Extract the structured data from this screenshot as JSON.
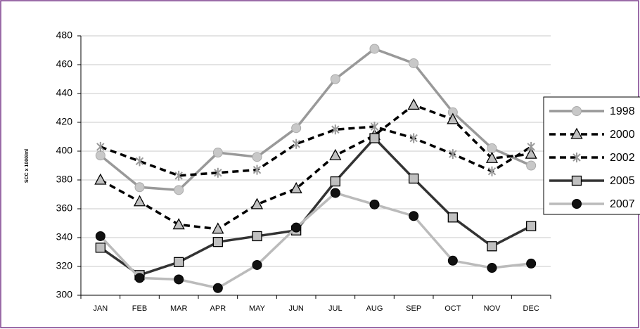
{
  "chart_data": {
    "type": "line",
    "y_label": "SCC x 1000/ml",
    "categories": [
      "JAN",
      "FEB",
      "MAR",
      "APR",
      "MAY",
      "JUN",
      "JUL",
      "AUG",
      "SEP",
      "OCT",
      "NOV",
      "DEC"
    ],
    "ylim": [
      300,
      480
    ],
    "yticks": [
      300,
      320,
      340,
      360,
      380,
      400,
      420,
      440,
      460,
      480
    ],
    "grid": true,
    "series": [
      {
        "name": "1998",
        "color": "#999999",
        "dash": "solid",
        "marker": "circle",
        "marker_fill": "#c8c8c8",
        "values": [
          397,
          375,
          373,
          399,
          396,
          416,
          450,
          471,
          461,
          427,
          402,
          390
        ]
      },
      {
        "name": "2000",
        "color": "#000000",
        "dash": "dashed",
        "marker": "triangle",
        "marker_fill": "#c0c0c0",
        "values": [
          380,
          365,
          349,
          346,
          363,
          374,
          397,
          411,
          432,
          422,
          395,
          398
        ]
      },
      {
        "name": "2002",
        "color": "#000000",
        "dash": "dashed",
        "marker": "star",
        "marker_fill": "#999999",
        "values": [
          403,
          393,
          383,
          385,
          387,
          405,
          415,
          417,
          409,
          398,
          386,
          403
        ]
      },
      {
        "name": "2005",
        "color": "#333333",
        "dash": "solid",
        "marker": "square",
        "marker_fill": "#c0c0c0",
        "values": [
          333,
          314,
          323,
          337,
          341,
          345,
          379,
          409,
          381,
          354,
          334,
          348
        ]
      },
      {
        "name": "2007",
        "color": "#bbbbbb",
        "dash": "solid",
        "marker": "circle",
        "marker_fill": "#111111",
        "values": [
          341,
          312,
          311,
          305,
          321,
          347,
          371,
          363,
          355,
          324,
          319,
          322
        ]
      }
    ]
  }
}
